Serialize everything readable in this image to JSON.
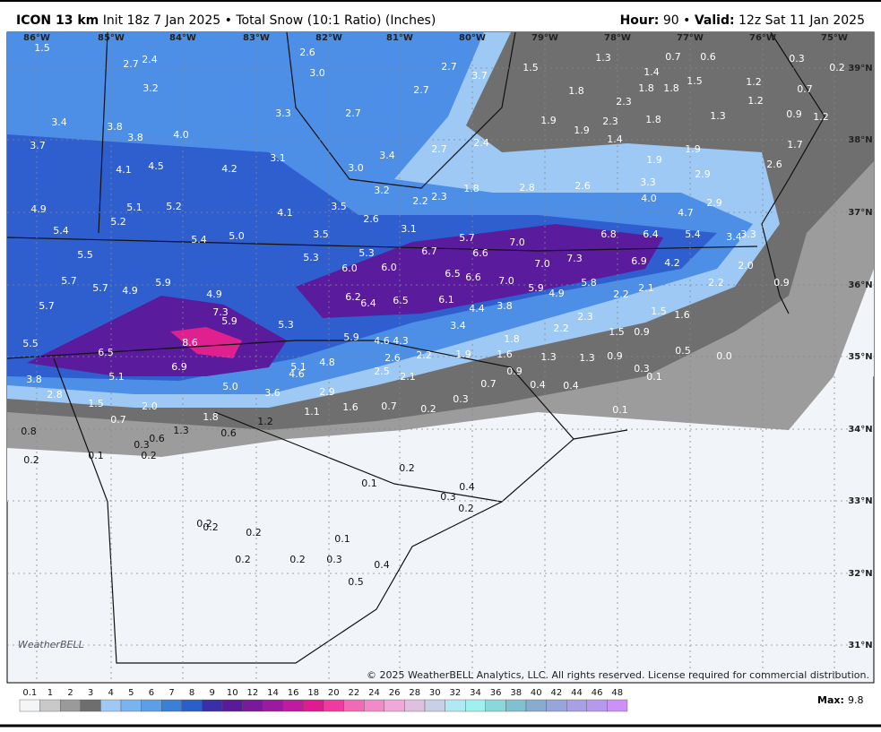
{
  "header": {
    "model": "ICON 13 km",
    "init": "Init 18z 7 Jan 2025",
    "bullet": "•",
    "product": "Total Snow (10:1 Ratio) (Inches)",
    "hour_label": "Hour:",
    "hour": "90",
    "bullet2": "•",
    "valid_label": "Valid:",
    "valid": "12z Sat 11 Jan 2025"
  },
  "longitudes": [
    "86°W",
    "85°W",
    "84°W",
    "83°W",
    "82°W",
    "81°W",
    "80°W",
    "79°W",
    "78°W",
    "77°W",
    "76°W",
    "75°W"
  ],
  "latitudes": [
    "39°N",
    "38°N",
    "37°N",
    "36°N",
    "35°N",
    "34°N",
    "33°N",
    "32°N",
    "31°N"
  ],
  "snow_labels": [
    "1.5",
    "2.7",
    "2.4",
    "2.6",
    "3.0",
    "2.7",
    "3.7",
    "2.7",
    "1.5",
    "1.3",
    "1.4",
    "0.7",
    "0.6",
    "0.3",
    "0.2",
    "3.2",
    "3.3",
    "2.7",
    "1.8",
    "2.3",
    "1.8",
    "1.8",
    "1.5",
    "1.2",
    "1.2",
    "0.7",
    "3.4",
    "3.8",
    "3.8",
    "4.0",
    "1.9",
    "1.9",
    "2.3",
    "1.4",
    "1.8",
    "1.3",
    "0.9",
    "1.2",
    "3.7",
    "3.1",
    "3.4",
    "2.7",
    "2.4",
    "1.9",
    "1.7",
    "4.1",
    "4.5",
    "4.2",
    "3.0",
    "1.9",
    "2.6",
    "1.8",
    "2.8",
    "2.6",
    "3.3",
    "2.9",
    "3.2",
    "2.2",
    "2.3",
    "4.9",
    "5.1",
    "5.2",
    "4.1",
    "3.5",
    "2.6",
    "4.0",
    "2.9",
    "4.7",
    "5.2",
    "5.4",
    "3.1",
    "5.4",
    "5.0",
    "3.5",
    "5.7",
    "7.0",
    "6.8",
    "6.4",
    "5.4",
    "3.4",
    "3.3",
    "5.5",
    "6.7",
    "6.6",
    "5.3",
    "5.3",
    "7.3",
    "7.0",
    "6.9",
    "4.2",
    "6.0",
    "6.0",
    "2.0",
    "6.5",
    "6.6",
    "5.7",
    "5.7",
    "4.9",
    "5.9",
    "7.0",
    "5.8",
    "2.2",
    "0.9",
    "6.1",
    "5.9",
    "4.9",
    "2.1",
    "2.2",
    "4.9",
    "6.2",
    "6.4",
    "6.5",
    "5.7",
    "4.4",
    "3.8",
    "1.5",
    "1.6",
    "7.3",
    "5.9",
    "5.3",
    "3.4",
    "2.3",
    "2.2",
    "1.5",
    "0.9",
    "5.9",
    "4.6",
    "4.3",
    "1.8",
    "5.5",
    "8.6",
    "0.5",
    "6.5",
    "2.2",
    "1.9",
    "1.6",
    "1.3",
    "1.3",
    "0.9",
    "0.0",
    "2.6",
    "4.8",
    "5.1",
    "6.9",
    "0.9",
    "0.3",
    "2.5",
    "2.1",
    "4.6",
    "5.1",
    "0.1",
    "3.8",
    "0.7",
    "0.4",
    "0.4",
    "5.0",
    "3.6",
    "2.9",
    "2.8",
    "0.3",
    "1.5",
    "2.0",
    "0.7",
    "0.2",
    "1.6",
    "1.1",
    "0.1",
    "1.8",
    "1.2",
    "0.7",
    "1.3",
    "0.8",
    "0.6",
    "0.6",
    "0.3",
    "0.1",
    "0.2",
    "0.2",
    "0.2",
    "0.1",
    "0.4",
    "0.3",
    "0.2",
    "0.2",
    "0.2",
    "0.2",
    "0.1",
    "0.2",
    "0.2",
    "0.3",
    "0.4",
    "0.5"
  ],
  "colorbar": {
    "labels": [
      "0.1",
      "1",
      "2",
      "3",
      "4",
      "5",
      "6",
      "7",
      "8",
      "9",
      "10",
      "12",
      "14",
      "16",
      "18",
      "20",
      "22",
      "24",
      "26",
      "28",
      "30",
      "32",
      "34",
      "36",
      "38",
      "40",
      "42",
      "44",
      "46",
      "48"
    ]
  },
  "max_label": "Max:",
  "max": "9.8",
  "copyright": "© 2025 WeatherBELL Analytics, LLC. All rights reserved. License required for commercial distribution.",
  "logo": "WeatherBELL"
}
